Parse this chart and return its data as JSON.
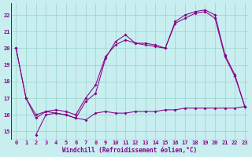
{
  "xlabel": "Windchill (Refroidissement éolien,°C)",
  "background_color": "#c8eef0",
  "grid_color": "#a0d8d0",
  "line_color": "#880088",
  "xlim": [
    -0.5,
    23.3
  ],
  "ylim": [
    14.5,
    22.7
  ],
  "xticks": [
    0,
    1,
    2,
    3,
    4,
    5,
    6,
    7,
    8,
    9,
    10,
    11,
    12,
    13,
    14,
    15,
    16,
    17,
    18,
    19,
    20,
    21,
    22,
    23
  ],
  "yticks": [
    15,
    16,
    17,
    18,
    19,
    20,
    21,
    22
  ],
  "series1": {
    "x": [
      0,
      1,
      2,
      3,
      4,
      5,
      6,
      7,
      8,
      9,
      10,
      11,
      12,
      13,
      14,
      15,
      16,
      17,
      18,
      19,
      20,
      21,
      22,
      23
    ],
    "y": [
      20.0,
      17.0,
      16.0,
      16.2,
      16.1,
      16.0,
      15.8,
      16.8,
      17.3,
      19.4,
      20.4,
      20.8,
      20.3,
      20.3,
      20.2,
      20.0,
      21.6,
      22.0,
      22.2,
      22.3,
      22.0,
      19.6,
      18.4,
      16.5
    ]
  },
  "series2": {
    "x": [
      0,
      1,
      2,
      3,
      4,
      5,
      6,
      7,
      8,
      9,
      10,
      11,
      12,
      13,
      14,
      15,
      16,
      17,
      18,
      19,
      20,
      21,
      22,
      23
    ],
    "y": [
      20.0,
      17.0,
      15.8,
      16.2,
      16.3,
      16.2,
      16.0,
      17.0,
      17.8,
      19.5,
      20.2,
      20.5,
      20.3,
      20.2,
      20.1,
      20.0,
      21.5,
      21.8,
      22.1,
      22.2,
      21.8,
      19.5,
      18.3,
      16.5
    ]
  },
  "series3": {
    "x": [
      2,
      3,
      4,
      5,
      6,
      7,
      8,
      9,
      10,
      11,
      12,
      13,
      14,
      15,
      16,
      17,
      18,
      19,
      20,
      21,
      22,
      23
    ],
    "y": [
      14.8,
      16.0,
      16.1,
      16.0,
      15.8,
      15.7,
      16.1,
      16.2,
      16.1,
      16.1,
      16.2,
      16.2,
      16.2,
      16.3,
      16.3,
      16.4,
      16.4,
      16.4,
      16.4,
      16.4,
      16.4,
      16.5
    ]
  }
}
